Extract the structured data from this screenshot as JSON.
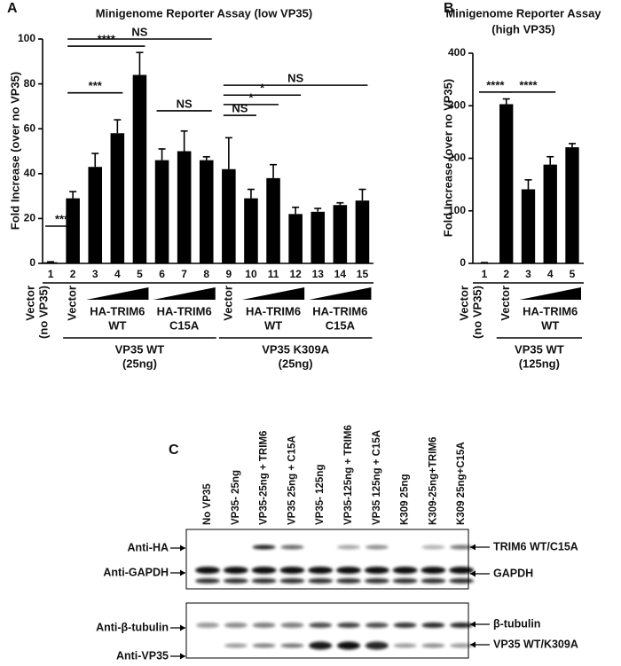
{
  "charts": [
    {
      "type": "bar",
      "panel_label": "A",
      "title": [
        "Minigenome Reporter Assay (low VP35)"
      ],
      "ylabel": "Fold Increase (over no VP35)",
      "categories": [
        "1",
        "2",
        "3",
        "4",
        "5",
        "6",
        "7",
        "8",
        "9",
        "10",
        "11",
        "12",
        "13",
        "14",
        "15"
      ],
      "values": [
        0.5,
        29,
        43,
        58,
        84,
        46,
        50,
        46,
        42,
        29,
        38,
        22,
        23,
        26,
        28
      ],
      "errors": [
        0.2,
        3,
        6,
        6,
        10,
        5,
        9,
        1.5,
        14,
        4,
        6,
        3,
        1.5,
        1,
        5
      ],
      "color": "#000000",
      "ylim": [
        0,
        100
      ],
      "yticks": [
        0,
        20,
        40,
        60,
        80,
        100
      ],
      "significance": [
        {
          "label": "***",
          "from": "1",
          "to": "2",
          "y": 16.6
        },
        {
          "label": "NS",
          "from": "2",
          "to": "8",
          "y": 100
        },
        {
          "label": "****",
          "from": "2",
          "to": "5",
          "y": 96.8
        },
        {
          "label": "***",
          "from": "2",
          "to": "4",
          "y": 76
        },
        {
          "label": "NS",
          "from": "6",
          "to": "8",
          "y": 68
        },
        {
          "label": "NS",
          "from": "9",
          "to": "15",
          "y": 79.4
        },
        {
          "label": "*",
          "from": "9",
          "to": "12",
          "y": 75
        },
        {
          "label": "*",
          "from": "9",
          "to": "11",
          "y": 70.8
        },
        {
          "label": "NS",
          "from": "9",
          "to": "10",
          "y": 66
        }
      ],
      "vertical_labels": [
        {
          "lines": [
            "Vector",
            "(no VP35)"
          ],
          "at": "1"
        },
        {
          "lines": [
            "Vector"
          ],
          "at": "2"
        },
        {
          "lines": [
            "Vector"
          ],
          "at": "9"
        }
      ],
      "wedges": [
        {
          "lines": [
            "HA-TRIM6",
            "WT"
          ],
          "from": "3",
          "to": "5"
        },
        {
          "lines": [
            "HA-TRIM6",
            "C15A"
          ],
          "from": "6",
          "to": "8"
        },
        {
          "lines": [
            "HA-TRIM6",
            "WT"
          ],
          "from": "10",
          "to": "12"
        },
        {
          "lines": [
            "HA-TRIM6",
            "C15A"
          ],
          "from": "13",
          "to": "15"
        }
      ],
      "groups": [
        {
          "lines": [
            "VP35 WT",
            "(25ng)"
          ],
          "from": "2",
          "to": "8"
        },
        {
          "lines": [
            "VP35 K309A",
            "(25ng)"
          ],
          "from": "9",
          "to": "15"
        }
      ]
    },
    {
      "type": "bar",
      "panel_label": "B",
      "title": [
        "Minigenome Reporter Assay",
        "(high VP35)"
      ],
      "ylabel": "Fold Increase (over no VP35)",
      "categories": [
        "1",
        "2",
        "3",
        "4",
        "5"
      ],
      "values": [
        1,
        303,
        141,
        188,
        221
      ],
      "errors": [
        0.5,
        10,
        18,
        15,
        7
      ],
      "color": "#000000",
      "ylim": [
        0,
        400
      ],
      "yticks": [
        0,
        100,
        200,
        300,
        400
      ],
      "significance": [
        {
          "label": "****",
          "from": "1",
          "to": "2",
          "y": 326
        },
        {
          "label": "****",
          "from": "2",
          "to": "4",
          "y": 326
        }
      ],
      "vertical_labels": [
        {
          "lines": [
            "Vector",
            "(no VP35)"
          ],
          "at": "1"
        },
        {
          "lines": [
            "Vector"
          ],
          "at": "2"
        }
      ],
      "wedges": [
        {
          "lines": [
            "HA-TRIM6",
            "WT"
          ],
          "from": "3",
          "to": "5"
        }
      ],
      "groups": [
        {
          "lines": [
            "VP35 WT",
            "(125ng)"
          ],
          "from": "2",
          "to": "5"
        }
      ]
    }
  ],
  "blot": {
    "panel_label": "C",
    "lanes": [
      "No VP35",
      "VP35- 25ng",
      "VP35-25ng + TRIM6",
      "VP35 25ng + C15A",
      "VP35- 125ng",
      "VP35-125ng + TRIM6",
      "VP35 125ng + C15A",
      "K309 25ng",
      "K309-25ng+TRIM6",
      "K309 25ng+C15A"
    ],
    "left_labels": [
      "Anti-HA",
      "Anti-GAPDH",
      "Anti-β-tubulin",
      "Anti-VP35"
    ],
    "right_labels": [
      "TRIM6 WT/C15A",
      "GAPDH",
      "β-tubulin",
      "VP35 WT/K309A"
    ]
  }
}
